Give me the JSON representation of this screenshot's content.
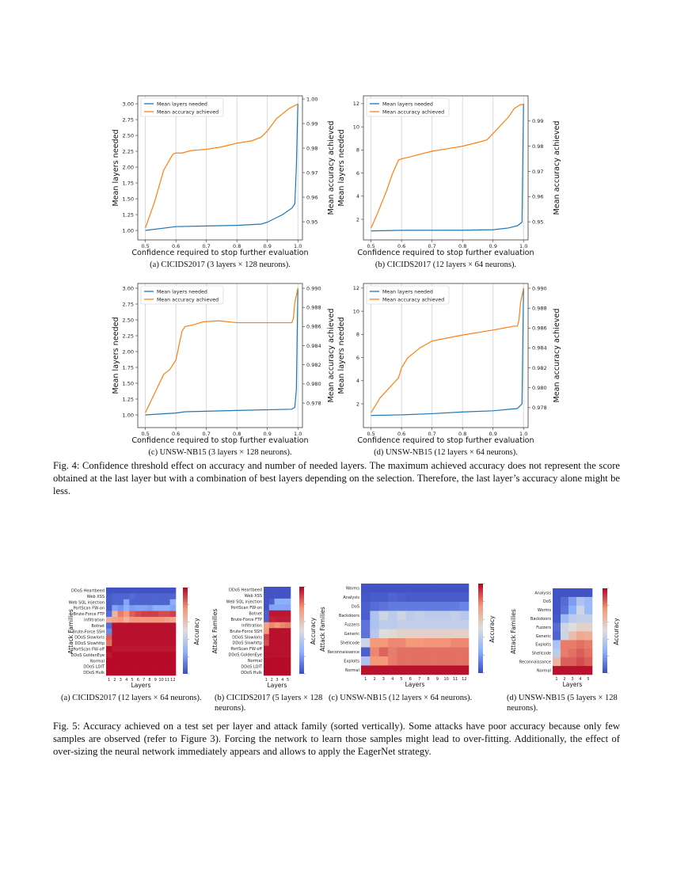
{
  "figure4": {
    "caption": "Fig. 4: Confidence threshold effect on accuracy and number of needed layers. The maximum achieved accuracy does not represent the score obtained at the last layer but with a combination of best layers depending on the selection. Therefore, the last layer’s accuracy alone might be less."
  },
  "figure5": {
    "caption": "Fig. 5: Accuracy achieved on a test set per layer and attack family (sorted vertically). Some attacks have poor accuracy because only few samples are observed (refer to Figure 3). Forcing the network to learn those samples might lead to over-fitting. Additionally, the effect of over-sizing the neural network immediately appears and allows to apply the EagerNet strategy."
  },
  "colors": {
    "layers": "#1f77b4",
    "accuracy": "#ff7f0e",
    "cmap_low": "#3b4cc0",
    "cmap_mid": "#dddddd",
    "cmap_high": "#b40426"
  },
  "chart_data": [
    {
      "type": "line",
      "caption": "(a) CICIDS2017 (3 layers × 128 neurons).",
      "xlabel": "Confidence required to stop further evaluation",
      "ylabel": "Mean layers needed",
      "y2label": "Mean accuracy achieved",
      "xlim": [
        0.475,
        1.015
      ],
      "ylim": [
        0.85,
        3.125
      ],
      "y2lim": [
        0.9426,
        1.0013
      ],
      "xticks": [
        "0.5",
        "0.6",
        "0.7",
        "0.8",
        "0.9",
        "1.0"
      ],
      "yticks": [
        "1.00",
        "1.25",
        "1.50",
        "1.75",
        "2.00",
        "2.25",
        "2.50",
        "2.75",
        "3.00"
      ],
      "y2ticks": [
        "0.95",
        "0.96",
        "0.97",
        "0.98",
        "0.99",
        "1.00"
      ],
      "grid": "vertical",
      "legend": "top-left",
      "series": [
        {
          "name": "Mean layers needed",
          "axis": "left",
          "x": [
            0.5,
            0.6,
            0.7,
            0.8,
            0.88,
            0.9,
            0.95,
            0.98,
            0.99,
            0.995,
            1.0
          ],
          "y": [
            1.0,
            1.06,
            1.07,
            1.08,
            1.1,
            1.13,
            1.25,
            1.35,
            1.42,
            2.0,
            3.0
          ]
        },
        {
          "name": "Mean accuracy achieved",
          "axis": "right",
          "x": [
            0.5,
            0.53,
            0.56,
            0.59,
            0.6,
            0.62,
            0.65,
            0.7,
            0.75,
            0.8,
            0.85,
            0.88,
            0.9,
            0.93,
            0.97,
            1.0
          ],
          "y": [
            0.9475,
            0.958,
            0.971,
            0.9775,
            0.978,
            0.978,
            0.979,
            0.9795,
            0.9805,
            0.982,
            0.983,
            0.9845,
            0.987,
            0.992,
            0.996,
            0.998
          ]
        }
      ]
    },
    {
      "type": "line",
      "caption": "(b) CICIDS2017 (12 layers × 64 neurons).",
      "xlabel": "Confidence required to stop further evaluation",
      "ylabel": "Mean layers needed",
      "y2label": "Mean accuracy achieved",
      "xlim": [
        0.475,
        1.015
      ],
      "ylim": [
        0.22,
        12.68
      ],
      "y2lim": [
        0.9428,
        1.0
      ],
      "xticks": [
        "0.5",
        "0.6",
        "0.7",
        "0.8",
        "0.9",
        "1.0"
      ],
      "yticks": [
        "2",
        "4",
        "6",
        "8",
        "10",
        "12"
      ],
      "y2ticks": [
        "0.95",
        "0.96",
        "0.97",
        "0.98",
        "0.99"
      ],
      "grid": "vertical",
      "legend": "top-left",
      "series": [
        {
          "name": "Mean layers needed",
          "axis": "left",
          "x": [
            0.5,
            0.6,
            0.8,
            0.9,
            0.95,
            0.98,
            0.995,
            1.0
          ],
          "y": [
            1.0,
            1.05,
            1.06,
            1.1,
            1.25,
            1.45,
            1.75,
            12.0
          ]
        },
        {
          "name": "Mean accuracy achieved",
          "axis": "right",
          "x": [
            0.5,
            0.52,
            0.55,
            0.57,
            0.59,
            0.6,
            0.62,
            0.65,
            0.7,
            0.75,
            0.8,
            0.85,
            0.88,
            0.9,
            0.95,
            0.97,
            0.99,
            1.0
          ],
          "y": [
            0.9475,
            0.953,
            0.962,
            0.969,
            0.9745,
            0.975,
            0.9755,
            0.9765,
            0.978,
            0.979,
            0.98,
            0.9815,
            0.9825,
            0.985,
            0.9915,
            0.995,
            0.9965,
            0.9965
          ]
        }
      ]
    },
    {
      "type": "line",
      "caption": "(c) UNSW-NB15 (3 layers × 128 neurons).",
      "xlabel": "Confidence required to stop further evaluation",
      "ylabel": "Mean layers needed",
      "y2label": "Mean accuracy achieved",
      "xlim": [
        0.475,
        1.015
      ],
      "ylim": [
        0.8,
        3.075
      ],
      "y2lim": [
        0.97544,
        0.9905
      ],
      "xticks": [
        "0.5",
        "0.6",
        "0.7",
        "0.8",
        "0.9",
        "1.0"
      ],
      "yticks": [
        "1.00",
        "1.25",
        "1.50",
        "1.75",
        "2.00",
        "2.25",
        "2.50",
        "2.75",
        "3.00"
      ],
      "y2ticks": [
        "0.978",
        "0.980",
        "0.982",
        "0.984",
        "0.986",
        "0.988",
        "0.990"
      ],
      "grid": "vertical",
      "legend": "top-left",
      "series": [
        {
          "name": "Mean layers needed",
          "axis": "left",
          "x": [
            0.5,
            0.6,
            0.63,
            0.8,
            0.98,
            0.99,
            0.995,
            1.0
          ],
          "y": [
            1.0,
            1.03,
            1.05,
            1.07,
            1.09,
            1.12,
            1.4,
            3.0
          ]
        },
        {
          "name": "Mean accuracy achieved",
          "axis": "right",
          "x": [
            0.5,
            0.53,
            0.56,
            0.58,
            0.6,
            0.62,
            0.63,
            0.66,
            0.69,
            0.74,
            0.8,
            0.9,
            0.98,
            0.985,
            0.99,
            1.0
          ],
          "y": [
            0.977,
            0.979,
            0.981,
            0.9815,
            0.9825,
            0.9855,
            0.986,
            0.9862,
            0.9865,
            0.9866,
            0.9864,
            0.9864,
            0.9864,
            0.9868,
            0.9885,
            0.99
          ]
        }
      ]
    },
    {
      "type": "line",
      "caption": "(d) UNSW-NB15 (12 layers × 64 neurons).",
      "xlabel": "Confidence required to stop further evaluation",
      "ylabel": "Mean layers needed",
      "y2label": "Mean accuracy achieved",
      "xlim": [
        0.475,
        1.015
      ],
      "ylim": [
        -0.05,
        12.4
      ],
      "y2lim": [
        0.976,
        0.99048
      ],
      "xticks": [
        "0.5",
        "0.6",
        "0.7",
        "0.8",
        "0.9",
        "1.0"
      ],
      "yticks": [
        "2",
        "4",
        "6",
        "8",
        "10",
        "12"
      ],
      "y2ticks": [
        "0.978",
        "0.980",
        "0.982",
        "0.984",
        "0.986",
        "0.988",
        "0.990"
      ],
      "grid": "vertical",
      "legend": "top-left",
      "series": [
        {
          "name": "Mean layers needed",
          "axis": "left",
          "x": [
            0.5,
            0.6,
            0.7,
            0.8,
            0.9,
            0.98,
            0.995,
            1.0
          ],
          "y": [
            1.0,
            1.05,
            1.15,
            1.3,
            1.4,
            1.6,
            2.0,
            12.0
          ]
        },
        {
          "name": "Mean accuracy achieved",
          "axis": "right",
          "x": [
            0.5,
            0.53,
            0.56,
            0.59,
            0.6,
            0.62,
            0.66,
            0.7,
            0.75,
            0.8,
            0.9,
            0.97,
            0.98,
            0.985,
            0.99,
            1.0
          ],
          "y": [
            0.9775,
            0.979,
            0.98,
            0.981,
            0.982,
            0.983,
            0.984,
            0.9847,
            0.985,
            0.9853,
            0.9858,
            0.9862,
            0.9862,
            0.9868,
            0.9885,
            0.99
          ]
        }
      ]
    },
    {
      "type": "heatmap",
      "caption": "(a) CICIDS2017 (12 layers × 64 neurons).",
      "xlabel": "Layers",
      "ylabel": "Attack Families",
      "colorbar_label": "Accuracy",
      "clim": [
        0,
        1
      ],
      "columns": [
        "1",
        "2",
        "3",
        "4",
        "5",
        "6",
        "7",
        "8",
        "9",
        "10",
        "11",
        "12"
      ],
      "rows": [
        "DDoS Heartbeed",
        "Web XSS",
        "Web SQL injection",
        "PortScan FW-on",
        "Brute-Force FTP",
        "Infiltration",
        "Botnet",
        "Brute-Force SSH",
        "DDoS Slowloris",
        "DDoS Slowhttp",
        "PortScan FW-off",
        "DDoS GoldenEye",
        "Normal",
        "DDoS LOIT",
        "DDoS Hulk"
      ],
      "values": [
        [
          0.02,
          0.02,
          0.02,
          0.02,
          0.02,
          0.02,
          0.02,
          0.02,
          0.02,
          0.02,
          0.02,
          0.02
        ],
        [
          0.04,
          0.06,
          0.06,
          0.06,
          0.08,
          0.06,
          0.06,
          0.06,
          0.06,
          0.06,
          0.06,
          0.06
        ],
        [
          0.04,
          0.06,
          0.06,
          0.22,
          0.06,
          0.06,
          0.06,
          0.06,
          0.06,
          0.06,
          0.06,
          0.25
        ],
        [
          0.04,
          0.22,
          0.18,
          0.25,
          0.2,
          0.22,
          0.22,
          0.2,
          0.25,
          0.25,
          0.25,
          0.22
        ],
        [
          0.08,
          0.65,
          0.8,
          0.75,
          0.85,
          0.88,
          0.9,
          0.9,
          0.9,
          0.88,
          0.88,
          0.9
        ],
        [
          0.68,
          0.72,
          0.75,
          0.66,
          0.75,
          0.75,
          0.75,
          0.75,
          0.75,
          0.75,
          0.72,
          0.7
        ],
        [
          0.08,
          0.98,
          0.98,
          0.98,
          0.98,
          0.98,
          0.98,
          0.98,
          0.98,
          0.98,
          0.98,
          0.98
        ],
        [
          0.15,
          0.98,
          0.98,
          0.98,
          0.98,
          0.98,
          0.98,
          0.98,
          0.98,
          0.98,
          0.98,
          0.98
        ],
        [
          0.85,
          0.98,
          0.98,
          0.98,
          0.98,
          0.98,
          0.98,
          0.98,
          0.98,
          0.98,
          0.98,
          0.98
        ],
        [
          0.82,
          0.98,
          0.98,
          0.98,
          0.98,
          0.98,
          0.98,
          0.98,
          0.98,
          0.98,
          0.98,
          0.98
        ],
        [
          0.99,
          0.97,
          0.97,
          0.97,
          0.97,
          0.97,
          0.97,
          0.97,
          0.97,
          0.97,
          0.97,
          0.97
        ],
        [
          0.97,
          0.99,
          0.99,
          0.99,
          0.99,
          0.99,
          0.99,
          0.99,
          0.99,
          0.99,
          0.99,
          0.99
        ],
        [
          0.99,
          0.99,
          0.99,
          0.99,
          0.99,
          0.99,
          0.99,
          0.99,
          0.99,
          0.99,
          0.99,
          0.99
        ],
        [
          0.99,
          0.99,
          0.99,
          0.99,
          0.99,
          0.99,
          0.99,
          0.99,
          0.99,
          0.99,
          0.99,
          0.99
        ],
        [
          0.99,
          0.99,
          0.99,
          0.99,
          0.99,
          0.99,
          0.99,
          0.99,
          0.99,
          0.99,
          0.99,
          0.99
        ]
      ]
    },
    {
      "type": "heatmap",
      "caption": "(b) CICIDS2017 (5 layers × 128 neurons).",
      "xlabel": "Layers",
      "ylabel": "Attack Families",
      "colorbar_label": "Accuracy",
      "clim": [
        0,
        1
      ],
      "columns": [
        "1",
        "2",
        "3",
        "4",
        "5"
      ],
      "rows": [
        "DDoS Heartbeed",
        "Web XSS",
        "Web SQL injection",
        "PortScan FW-on",
        "Botnet",
        "Brute-Force FTP",
        "Infiltration",
        "Brute-Force SSH",
        "DDoS Slowloris",
        "DDoS Slowhttp",
        "PortScan FW-off",
        "DDoS GoldenEye",
        "Normal",
        "DDoS LOIT",
        "DDoS Hulk"
      ],
      "values": [
        [
          0.02,
          0.02,
          0.02,
          0.02,
          0.02
        ],
        [
          0.02,
          0.02,
          0.02,
          0.02,
          0.02
        ],
        [
          0.02,
          0.05,
          0.25,
          0.25,
          0.25
        ],
        [
          0.02,
          0.22,
          0.22,
          0.22,
          0.22
        ],
        [
          0.05,
          0.97,
          0.97,
          0.97,
          0.97
        ],
        [
          0.05,
          0.95,
          0.96,
          0.96,
          0.96
        ],
        [
          0.72,
          0.78,
          0.75,
          0.78,
          0.8
        ],
        [
          0.75,
          0.98,
          0.98,
          0.98,
          0.98
        ],
        [
          0.9,
          0.98,
          0.98,
          0.98,
          0.98
        ],
        [
          0.88,
          0.98,
          0.98,
          0.98,
          0.98
        ],
        [
          0.98,
          0.98,
          0.98,
          0.98,
          0.98
        ],
        [
          0.98,
          0.98,
          0.98,
          0.98,
          0.98
        ],
        [
          0.99,
          0.99,
          0.99,
          0.99,
          0.99
        ],
        [
          0.99,
          0.99,
          0.99,
          0.99,
          0.99
        ],
        [
          0.99,
          0.99,
          0.99,
          0.99,
          0.99
        ]
      ]
    },
    {
      "type": "heatmap",
      "caption": "(c) UNSW-NB15 (12 layers × 64 neurons).",
      "xlabel": "Layers",
      "ylabel": "Attack Families",
      "colorbar_label": "Accuracy",
      "clim": [
        0,
        1
      ],
      "columns": [
        "1",
        "2",
        "3",
        "4",
        "5",
        "6",
        "7",
        "8",
        "9",
        "10",
        "11",
        "12"
      ],
      "rows": [
        "Worms",
        "Analysis",
        "DoS",
        "Backdoors",
        "Fuzzers",
        "Generic",
        "Shellcode",
        "Reconnaissance",
        "Exploits",
        "Normal"
      ],
      "values": [
        [
          0.02,
          0.02,
          0.02,
          0.02,
          0.02,
          0.02,
          0.02,
          0.02,
          0.02,
          0.02,
          0.02,
          0.02
        ],
        [
          0.03,
          0.04,
          0.04,
          0.06,
          0.05,
          0.04,
          0.04,
          0.04,
          0.04,
          0.04,
          0.04,
          0.04
        ],
        [
          0.05,
          0.08,
          0.1,
          0.12,
          0.12,
          0.12,
          0.12,
          0.12,
          0.12,
          0.12,
          0.12,
          0.14
        ],
        [
          0.05,
          0.35,
          0.45,
          0.4,
          0.45,
          0.4,
          0.42,
          0.4,
          0.4,
          0.4,
          0.42,
          0.38
        ],
        [
          0.1,
          0.35,
          0.4,
          0.4,
          0.42,
          0.42,
          0.42,
          0.42,
          0.42,
          0.42,
          0.42,
          0.42
        ],
        [
          0.1,
          0.38,
          0.5,
          0.52,
          0.55,
          0.55,
          0.55,
          0.55,
          0.55,
          0.55,
          0.55,
          0.55
        ],
        [
          0.45,
          0.75,
          0.75,
          0.78,
          0.78,
          0.75,
          0.75,
          0.76,
          0.76,
          0.76,
          0.78,
          0.78
        ],
        [
          0.05,
          0.78,
          0.84,
          0.8,
          0.82,
          0.82,
          0.82,
          0.82,
          0.82,
          0.82,
          0.82,
          0.82
        ],
        [
          0.35,
          0.75,
          0.75,
          0.8,
          0.82,
          0.82,
          0.82,
          0.82,
          0.82,
          0.82,
          0.82,
          0.82
        ],
        [
          0.98,
          0.98,
          0.98,
          0.98,
          0.98,
          0.98,
          0.98,
          0.98,
          0.98,
          0.98,
          0.98,
          0.98
        ]
      ]
    },
    {
      "type": "heatmap",
      "caption": "(d) UNSW-NB15 (5 layers × 128 neurons).",
      "xlabel": "Layers",
      "ylabel": "Attack Families",
      "colorbar_label": "Accuracy",
      "clim": [
        0,
        1
      ],
      "columns": [
        "1",
        "2",
        "3",
        "4",
        "5"
      ],
      "rows": [
        "Analysis",
        "DoS",
        "Worms",
        "Backdoors",
        "Fuzzers",
        "Generic",
        "Exploits",
        "Shellcode",
        "Reconnaissance",
        "Normal"
      ],
      "values": [
        [
          0.02,
          0.02,
          0.02,
          0.02,
          0.02
        ],
        [
          0.02,
          0.08,
          0.2,
          0.35,
          0.3
        ],
        [
          0.02,
          0.1,
          0.25,
          0.45,
          0.3
        ],
        [
          0.03,
          0.3,
          0.4,
          0.42,
          0.42
        ],
        [
          0.08,
          0.45,
          0.5,
          0.55,
          0.55
        ],
        [
          0.06,
          0.45,
          0.62,
          0.7,
          0.68
        ],
        [
          0.35,
          0.8,
          0.8,
          0.82,
          0.8
        ],
        [
          0.4,
          0.8,
          0.82,
          0.85,
          0.82
        ],
        [
          0.65,
          0.85,
          0.85,
          0.88,
          0.85
        ],
        [
          0.98,
          0.98,
          0.98,
          0.98,
          0.98
        ]
      ]
    }
  ]
}
